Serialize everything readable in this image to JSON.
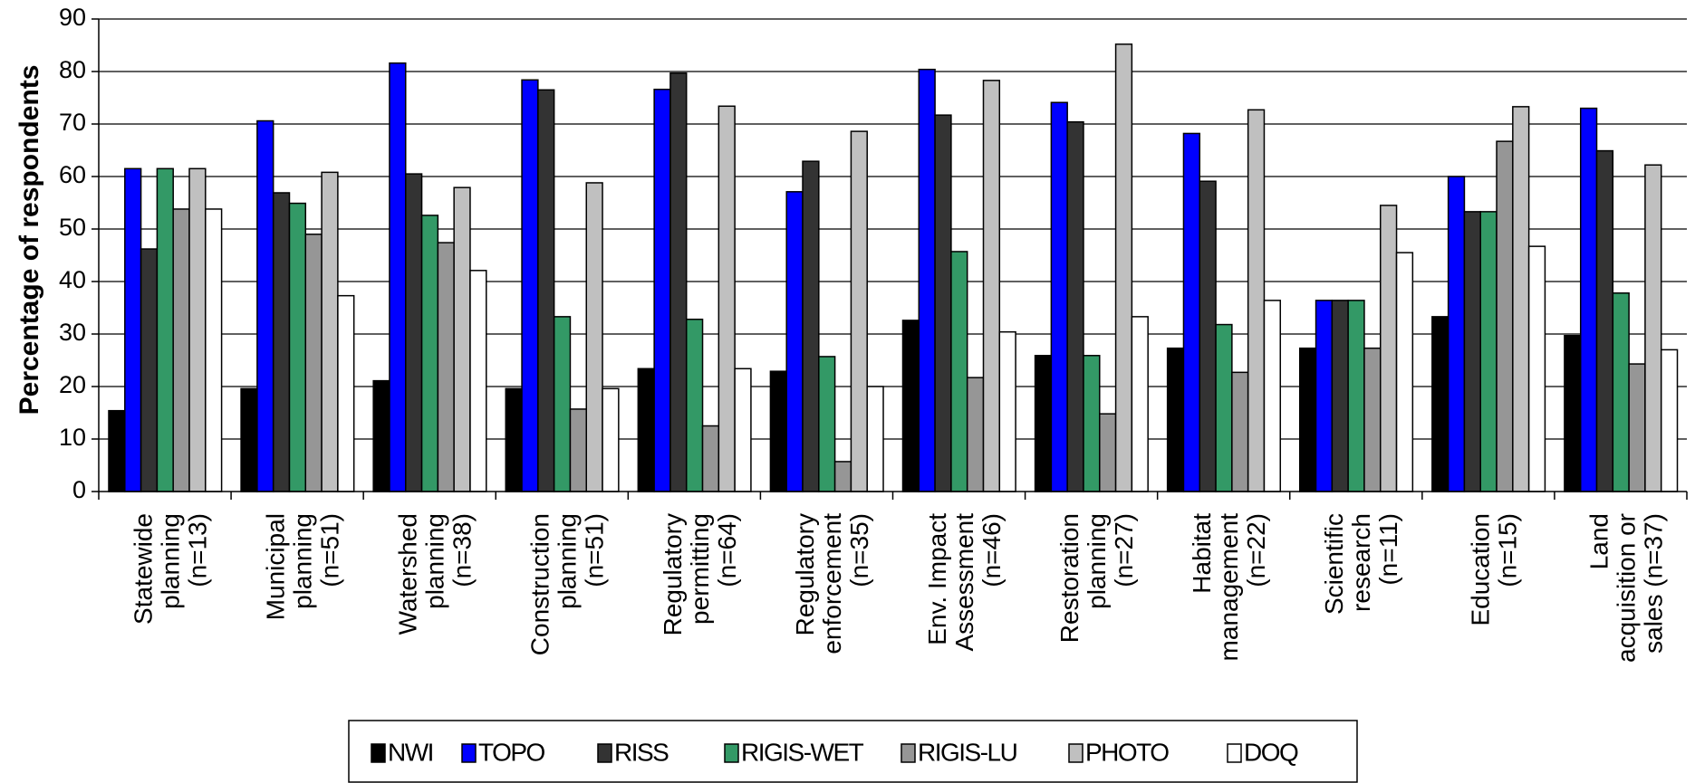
{
  "chart_data": {
    "type": "bar",
    "title": "",
    "ylabel": "Percentage of respondents",
    "xlabel": "",
    "ylim": [
      0,
      90
    ],
    "yticks": [
      0,
      10,
      20,
      30,
      40,
      50,
      60,
      70,
      80,
      90
    ],
    "grid": true,
    "legend_position": "bottom",
    "categories": [
      [
        "Statewide",
        "planning",
        "(n=13)"
      ],
      [
        "Municipal",
        "planning",
        "(n=51)"
      ],
      [
        "Watershed",
        "planning",
        "(n=38)"
      ],
      [
        "Construction",
        "planning",
        "(n=51)"
      ],
      [
        "Regulatory",
        "permitting",
        "(n=64)"
      ],
      [
        "Regulatory",
        "enforcement",
        "(n=35)"
      ],
      [
        "Env. Impact",
        "Assessment",
        "(n=46)"
      ],
      [
        "Restoration",
        "planning",
        "(n=27)"
      ],
      [
        "Habitat",
        "management",
        "(n=22)"
      ],
      [
        "Scientific",
        "research",
        "(n=11)"
      ],
      [
        "Education",
        "(n=15)"
      ],
      [
        "Land",
        "acquisition or",
        "sales (n=37)"
      ]
    ],
    "series": [
      {
        "name": "NWI",
        "color": "#000000",
        "values": [
          15.4,
          19.6,
          21.1,
          19.6,
          23.4,
          22.9,
          32.6,
          25.9,
          27.3,
          27.3,
          33.3,
          29.7
        ]
      },
      {
        "name": "TOPO",
        "color": "#0000ff",
        "values": [
          61.5,
          70.6,
          81.6,
          78.4,
          76.6,
          57.1,
          80.4,
          74.1,
          68.2,
          36.4,
          60.0,
          73.0
        ]
      },
      {
        "name": "RISS",
        "color": "#333333",
        "values": [
          46.2,
          56.9,
          60.5,
          76.5,
          79.7,
          62.9,
          71.7,
          70.4,
          59.1,
          36.4,
          53.3,
          64.9
        ]
      },
      {
        "name": "RIGIS-WET",
        "color": "#339966",
        "values": [
          61.5,
          54.9,
          52.6,
          33.3,
          32.8,
          25.7,
          45.7,
          25.9,
          31.8,
          36.4,
          53.3,
          37.8
        ]
      },
      {
        "name": "RIGIS-LU",
        "color": "#969696",
        "values": [
          53.8,
          49.0,
          47.4,
          15.7,
          12.5,
          5.7,
          21.7,
          14.8,
          22.7,
          27.3,
          66.7,
          24.3
        ]
      },
      {
        "name": "PHOTO",
        "color": "#c0c0c0",
        "values": [
          61.5,
          60.8,
          57.9,
          58.8,
          73.4,
          68.6,
          78.3,
          85.2,
          72.7,
          54.5,
          73.3,
          62.2
        ]
      },
      {
        "name": "DOQ",
        "color": "#ffffff",
        "values": [
          53.8,
          37.3,
          42.1,
          19.6,
          23.4,
          20.0,
          30.4,
          33.3,
          36.4,
          45.5,
          46.7,
          27.0
        ]
      }
    ]
  }
}
